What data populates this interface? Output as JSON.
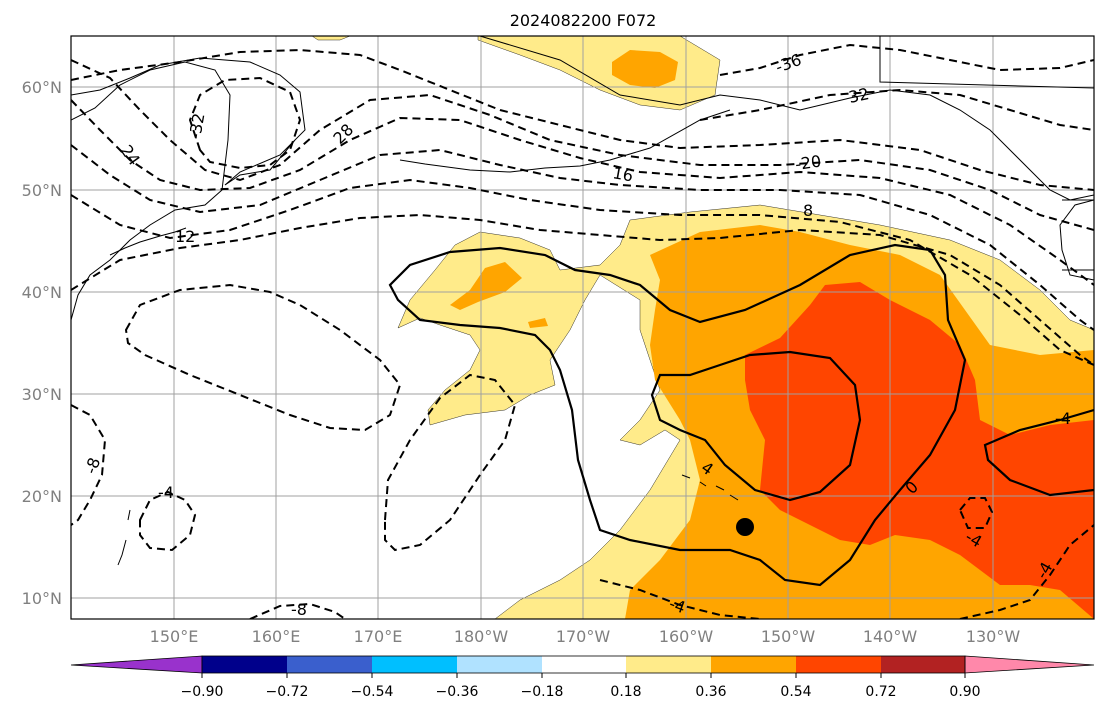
{
  "title": "2024082200 F072",
  "map": {
    "projection": "plate-carree",
    "lon_range": "140°E to 120°W",
    "lat_range": "8°N to 65°N",
    "lat_labels": [
      "60°N",
      "50°N",
      "40°N",
      "30°N",
      "20°N",
      "10°N"
    ],
    "lon_labels": [
      "150°E",
      "160°E",
      "170°E",
      "180°W",
      "170°W",
      "160°W",
      "150°W",
      "140°W",
      "130°W"
    ],
    "grid": true,
    "marker": {
      "type": "filled-circle",
      "lon": "154°W",
      "lat": "17°N",
      "color": "#000000"
    }
  },
  "shading": {
    "levels": [
      "0.18",
      "0.36",
      "0.54",
      "0.72",
      "0.90"
    ],
    "colors": {
      "band_018_036": "#FFEB8A",
      "band_036_054": "#FFA500",
      "band_054_072": "#FF4500",
      "band_072_090": "#B22222",
      "band_090_up": "#FF88AA"
    }
  },
  "contours": {
    "negative_style": "dashed",
    "zero_positive_style": "solid",
    "labels": [
      "-36",
      "32",
      "28",
      "24",
      "-32",
      "-20",
      "16",
      "12",
      "8",
      "-8",
      "-4",
      "4",
      "0",
      "-4",
      "-4",
      "-4",
      "-8",
      "-4"
    ]
  },
  "colorbar": {
    "tick_labels": [
      "−0.90",
      "−0.72",
      "−0.54",
      "−0.36",
      "−0.18",
      "0.18",
      "0.36",
      "0.54",
      "0.72",
      "0.90"
    ],
    "colors": [
      "#9932CC",
      "#00008B",
      "#3A5FCD",
      "#00BFFF",
      "#B0E2FF",
      "#FFFFFF",
      "#FFEB8A",
      "#FFA500",
      "#FF4500",
      "#B22222",
      "#FF88AA"
    ],
    "extend": "both"
  }
}
